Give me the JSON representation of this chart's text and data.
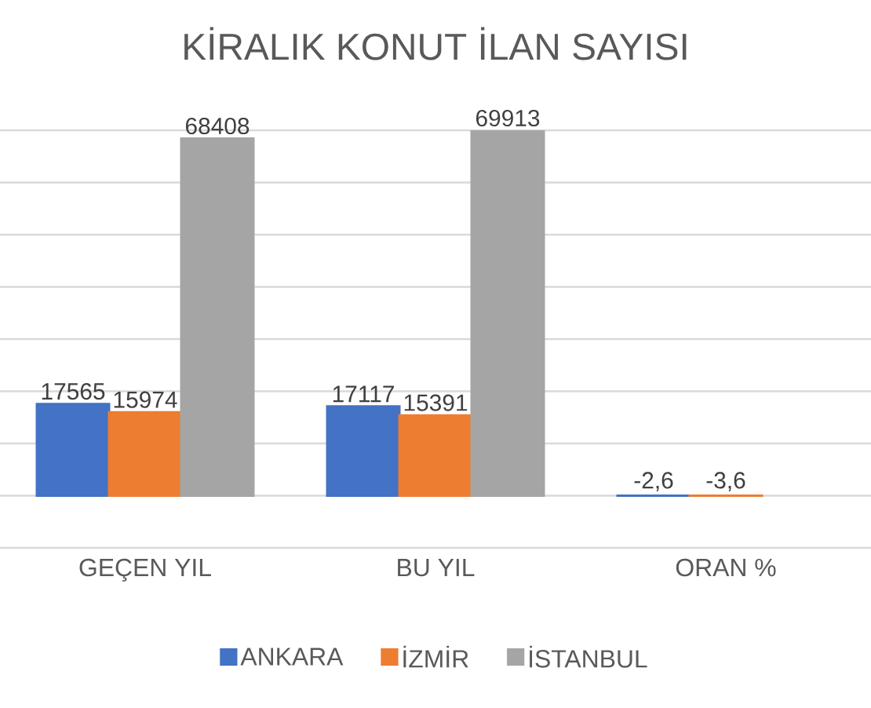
{
  "chart_data": {
    "type": "bar",
    "title": "KİRALIK KONUT İLAN SAYISI",
    "categories": [
      "GEÇEN YIL",
      "BU YIL",
      "ORAN %"
    ],
    "series": [
      {
        "name": "ANKARA",
        "color": "#4472c4",
        "values": [
          17565,
          17117,
          -2.6
        ],
        "value_labels": [
          "17565",
          "17117",
          "-2,6"
        ]
      },
      {
        "name": "İZMİR",
        "color": "#ed7d31",
        "values": [
          15974,
          15391,
          -3.6
        ],
        "value_labels": [
          "15974",
          "15391",
          "-3,6"
        ]
      },
      {
        "name": "İSTANBUL",
        "color": "#a5a5a5",
        "values": [
          68408,
          69913,
          null
        ],
        "value_labels": [
          "68408",
          "69913",
          null
        ]
      }
    ],
    "ylim": [
      -10000,
      70000
    ],
    "yticks": [
      -10000,
      0,
      10000,
      20000,
      30000,
      40000,
      50000,
      60000,
      70000
    ],
    "grid": "y",
    "tick_labels": "x",
    "legend": "bottom"
  }
}
